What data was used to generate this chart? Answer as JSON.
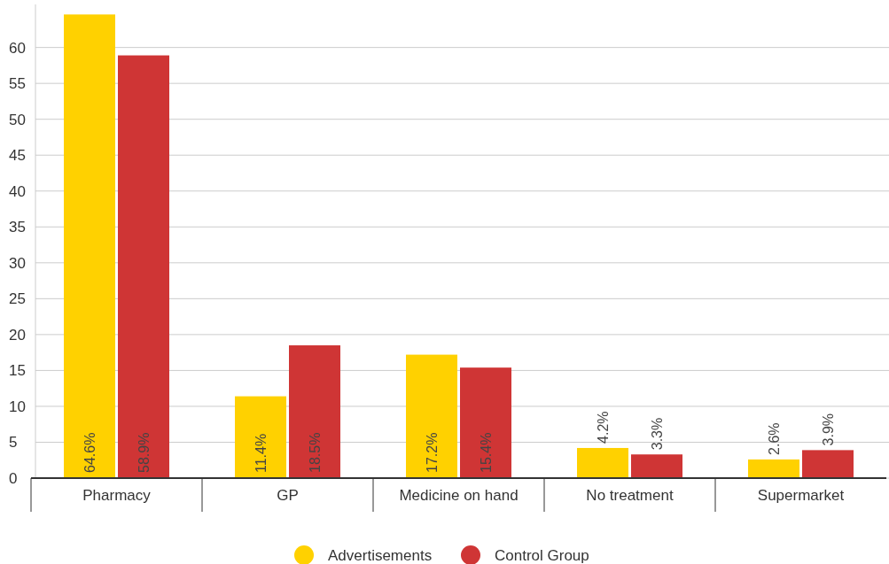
{
  "chart_data": {
    "type": "bar",
    "categories": [
      "Pharmacy",
      "GP",
      "Medicine on hand",
      "No treatment",
      "Supermarket"
    ],
    "series": [
      {
        "name": "Advertisements",
        "color": "#ffd100",
        "values": [
          64.6,
          11.4,
          17.2,
          4.2,
          2.6
        ],
        "value_labels": [
          "64.6%",
          "11.4%",
          "17.2%",
          "4.2%",
          "2.6%"
        ]
      },
      {
        "name": "Control Group",
        "color": "#cf3535",
        "values": [
          58.9,
          18.5,
          15.4,
          3.3,
          3.9
        ],
        "value_labels": [
          "58.9%",
          "18.5%",
          "15.4%",
          "3.3%",
          "3.9%"
        ]
      }
    ],
    "ylim": [
      0,
      66
    ],
    "yticks": [
      0,
      5,
      10,
      15,
      20,
      25,
      30,
      35,
      40,
      45,
      50,
      55,
      60
    ],
    "grid": "y",
    "legend": "bottom"
  }
}
